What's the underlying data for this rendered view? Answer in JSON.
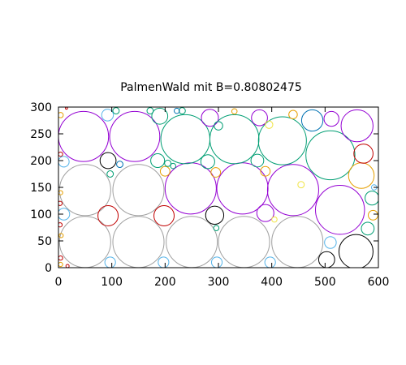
{
  "chart_data": {
    "type": "scatter",
    "title": "PalmenWald mit B=0.80802475",
    "xlabel": "",
    "ylabel": "",
    "xlim": [
      0,
      600
    ],
    "ylim": [
      0,
      300
    ],
    "xticks": [
      0,
      100,
      200,
      300,
      400,
      500,
      600
    ],
    "yticks": [
      0,
      50,
      100,
      150,
      200,
      250,
      300
    ],
    "grid": false,
    "legend": "none",
    "colors": {
      "gray": "#a0a0a0",
      "purple": "#9400d3",
      "teal": "#009e73",
      "cyan": "#56b4e9",
      "orange": "#e69f00",
      "yellow": "#f0e442",
      "darkblue": "#0072b2",
      "red": "#c00000",
      "black": "#000000"
    },
    "circles": [
      {
        "x": 50,
        "y": 48,
        "r": 48,
        "c": "gray"
      },
      {
        "x": 150,
        "y": 48,
        "r": 48,
        "c": "gray"
      },
      {
        "x": 250,
        "y": 48,
        "r": 48,
        "c": "gray"
      },
      {
        "x": 348,
        "y": 48,
        "r": 48,
        "c": "gray"
      },
      {
        "x": 448,
        "y": 48,
        "r": 48,
        "c": "gray"
      },
      {
        "x": 50,
        "y": 145,
        "r": 48,
        "c": "gray"
      },
      {
        "x": 150,
        "y": 145,
        "r": 48,
        "c": "gray"
      },
      {
        "x": 248,
        "y": 148,
        "r": 48,
        "c": "purple"
      },
      {
        "x": 345,
        "y": 148,
        "r": 48,
        "c": "purple"
      },
      {
        "x": 440,
        "y": 145,
        "r": 48,
        "c": "purple"
      },
      {
        "x": 47,
        "y": 245,
        "r": 47,
        "c": "purple"
      },
      {
        "x": 143,
        "y": 245,
        "r": 47,
        "c": "purple"
      },
      {
        "x": 238,
        "y": 240,
        "r": 46,
        "c": "teal"
      },
      {
        "x": 330,
        "y": 240,
        "r": 46,
        "c": "teal"
      },
      {
        "x": 420,
        "y": 237,
        "r": 45,
        "c": "teal"
      },
      {
        "x": 510,
        "y": 210,
        "r": 46,
        "c": "teal"
      },
      {
        "x": 528,
        "y": 108,
        "r": 46,
        "c": "purple"
      },
      {
        "x": 558,
        "y": 30,
        "r": 32,
        "c": "black"
      },
      {
        "x": 93,
        "y": 97,
        "r": 19,
        "c": "red"
      },
      {
        "x": 198,
        "y": 97,
        "r": 19,
        "c": "red"
      },
      {
        "x": 293,
        "y": 98,
        "r": 17,
        "c": "black"
      },
      {
        "x": 388,
        "y": 102,
        "r": 16,
        "c": "purple"
      },
      {
        "x": 503,
        "y": 15,
        "r": 15,
        "c": "black"
      },
      {
        "x": 510,
        "y": 47,
        "r": 11,
        "c": "cyan"
      },
      {
        "x": 568,
        "y": 172,
        "r": 24,
        "c": "orange"
      },
      {
        "x": 572,
        "y": 213,
        "r": 18,
        "c": "red"
      },
      {
        "x": 560,
        "y": 265,
        "r": 30,
        "c": "purple"
      },
      {
        "x": 512,
        "y": 278,
        "r": 14,
        "c": "purple"
      },
      {
        "x": 476,
        "y": 275,
        "r": 20,
        "c": "darkblue"
      },
      {
        "x": 377,
        "y": 280,
        "r": 15,
        "c": "purple"
      },
      {
        "x": 284,
        "y": 280,
        "r": 16,
        "c": "purple"
      },
      {
        "x": 190,
        "y": 283,
        "r": 15,
        "c": "teal"
      },
      {
        "x": 93,
        "y": 200,
        "r": 15,
        "c": "black"
      },
      {
        "x": 186,
        "y": 200,
        "r": 13,
        "c": "teal"
      },
      {
        "x": 280,
        "y": 198,
        "r": 13,
        "c": "teal"
      },
      {
        "x": 373,
        "y": 200,
        "r": 12,
        "c": "teal"
      },
      {
        "x": 588,
        "y": 130,
        "r": 13,
        "c": "teal"
      },
      {
        "x": 580,
        "y": 73,
        "r": 12,
        "c": "teal"
      },
      {
        "x": 590,
        "y": 98,
        "r": 9,
        "c": "orange"
      },
      {
        "x": 10,
        "y": 100,
        "r": 11,
        "c": "cyan"
      },
      {
        "x": 97,
        "y": 10,
        "r": 10,
        "c": "cyan"
      },
      {
        "x": 197,
        "y": 10,
        "r": 10,
        "c": "cyan"
      },
      {
        "x": 297,
        "y": 10,
        "r": 10,
        "c": "cyan"
      },
      {
        "x": 397,
        "y": 10,
        "r": 10,
        "c": "cyan"
      },
      {
        "x": 92,
        "y": 285,
        "r": 11,
        "c": "cyan"
      },
      {
        "x": 440,
        "y": 286,
        "r": 8,
        "c": "orange"
      },
      {
        "x": 200,
        "y": 180,
        "r": 9,
        "c": "orange"
      },
      {
        "x": 295,
        "y": 178,
        "r": 9,
        "c": "orange"
      },
      {
        "x": 388,
        "y": 180,
        "r": 9,
        "c": "orange"
      },
      {
        "x": 10,
        "y": 198,
        "r": 10,
        "c": "cyan"
      },
      {
        "x": 300,
        "y": 265,
        "r": 8,
        "c": "teal"
      },
      {
        "x": 395,
        "y": 267,
        "r": 7,
        "c": "yellow"
      },
      {
        "x": 108,
        "y": 293,
        "r": 6,
        "c": "teal"
      },
      {
        "x": 172,
        "y": 293,
        "r": 6,
        "c": "teal"
      },
      {
        "x": 232,
        "y": 293,
        "r": 6,
        "c": "teal"
      },
      {
        "x": 222,
        "y": 293,
        "r": 5,
        "c": "darkblue"
      },
      {
        "x": 330,
        "y": 292,
        "r": 5,
        "c": "orange"
      },
      {
        "x": 97,
        "y": 175,
        "r": 6,
        "c": "teal"
      },
      {
        "x": 115,
        "y": 193,
        "r": 6,
        "c": "darkblue"
      },
      {
        "x": 205,
        "y": 195,
        "r": 6,
        "c": "teal"
      },
      {
        "x": 215,
        "y": 190,
        "r": 5,
        "c": "teal"
      },
      {
        "x": 296,
        "y": 74,
        "r": 5,
        "c": "teal"
      },
      {
        "x": 405,
        "y": 90,
        "r": 5,
        "c": "yellow"
      },
      {
        "x": 455,
        "y": 155,
        "r": 6,
        "c": "yellow"
      },
      {
        "x": 3,
        "y": 120,
        "r": 4,
        "c": "red"
      },
      {
        "x": 3,
        "y": 80,
        "r": 4,
        "c": "red"
      },
      {
        "x": 5,
        "y": 60,
        "r": 4,
        "c": "orange"
      },
      {
        "x": 4,
        "y": 18,
        "r": 4,
        "c": "red"
      },
      {
        "x": 4,
        "y": 6,
        "r": 4,
        "c": "orange"
      },
      {
        "x": 17,
        "y": 3,
        "r": 3,
        "c": "red"
      },
      {
        "x": 4,
        "y": 140,
        "r": 4,
        "c": "orange"
      },
      {
        "x": 4,
        "y": 212,
        "r": 4,
        "c": "red"
      },
      {
        "x": 4,
        "y": 285,
        "r": 5,
        "c": "orange"
      },
      {
        "x": 15,
        "y": 298,
        "r": 2,
        "c": "red"
      },
      {
        "x": 592,
        "y": 150,
        "r": 5,
        "c": "cyan"
      }
    ]
  }
}
